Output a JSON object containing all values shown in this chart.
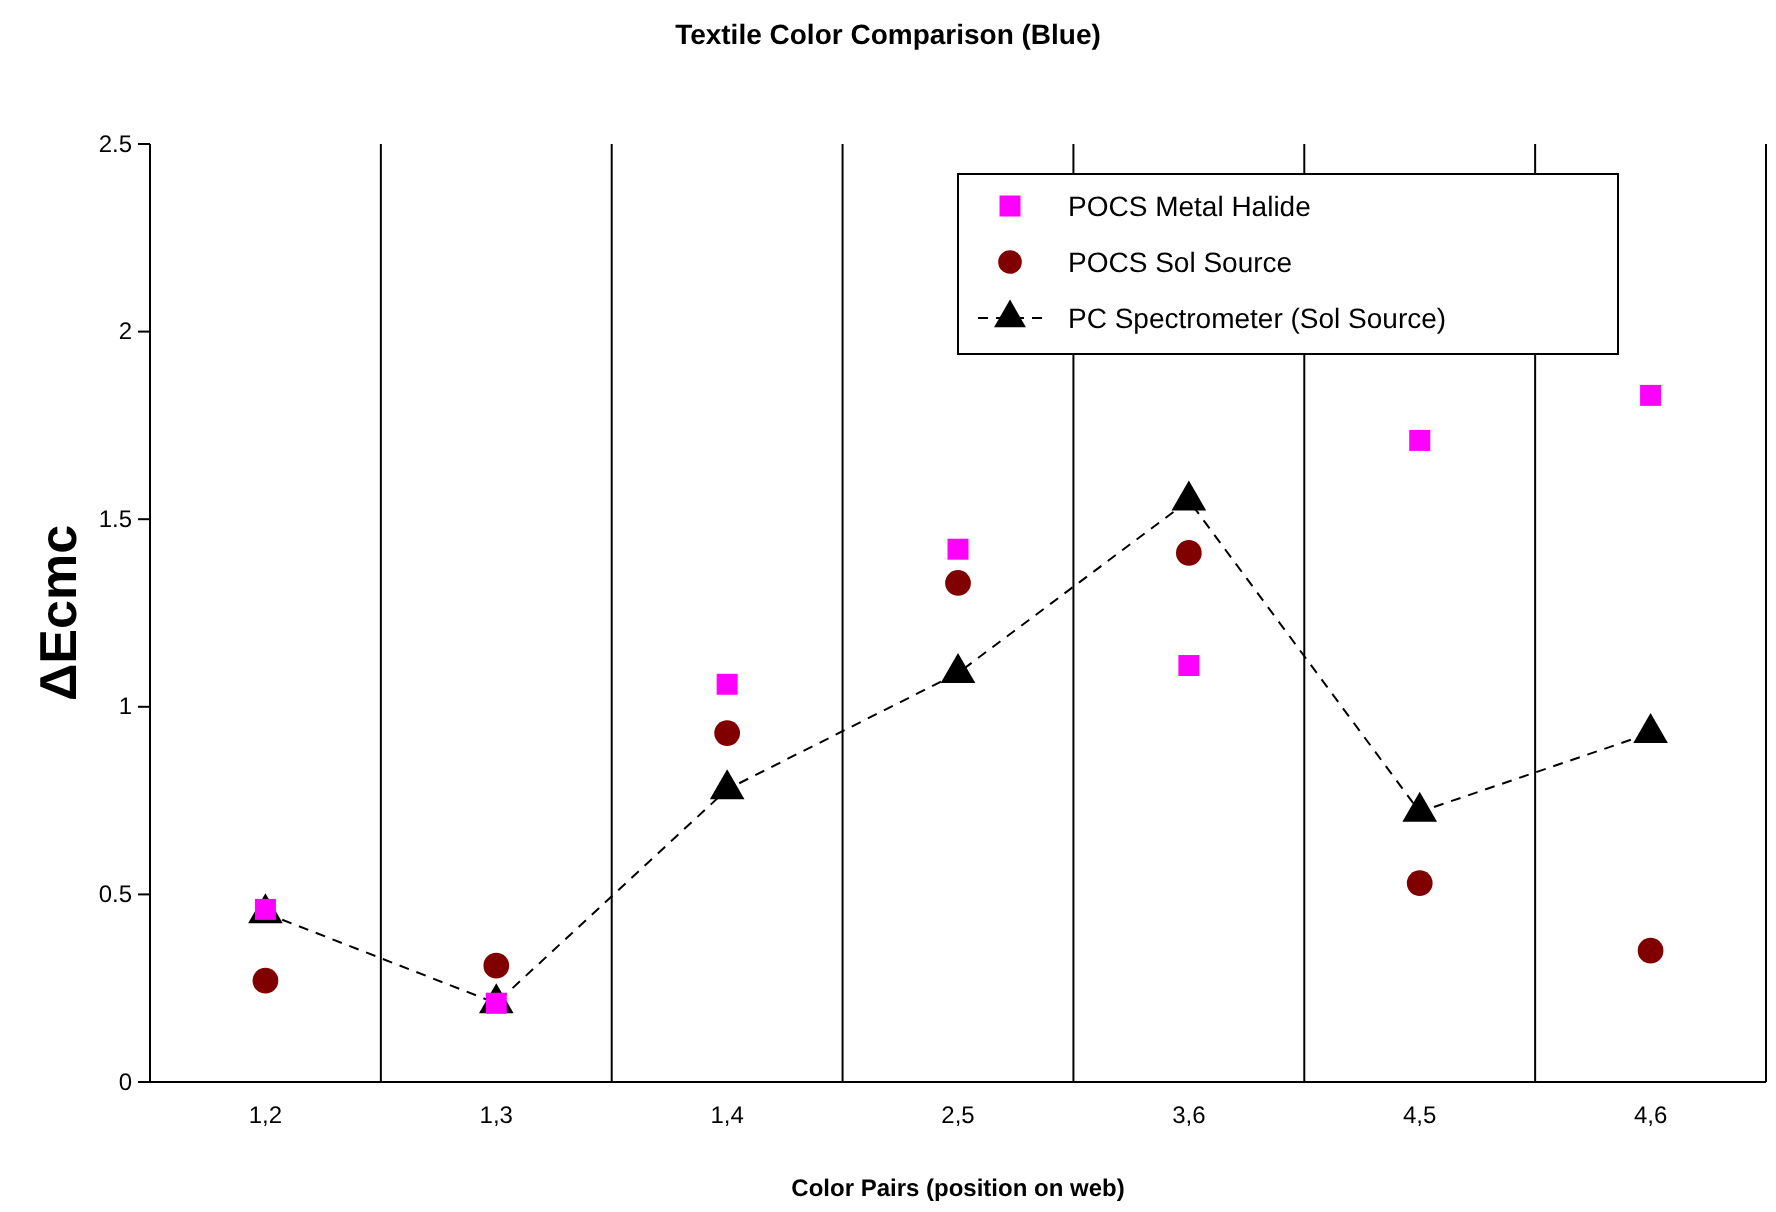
{
  "chart_data": {
    "type": "scatter",
    "title": "Textile Color Comparison (Blue)",
    "xlabel": "Color Pairs (position on web)",
    "ylabel": "ΔEcmc",
    "categories": [
      "1,2",
      "1,3",
      "1,4",
      "2,5",
      "3,6",
      "4,5",
      "4,6"
    ],
    "series": [
      {
        "name": "POCS Metal Halide",
        "color": "#ff00ff",
        "marker": "square",
        "values": [
          0.46,
          0.21,
          1.06,
          1.42,
          1.11,
          1.71,
          1.83
        ]
      },
      {
        "name": "POCS Sol Source",
        "color": "#800000",
        "marker": "circle",
        "values": [
          0.27,
          0.31,
          0.93,
          1.33,
          1.41,
          0.53,
          0.35
        ]
      },
      {
        "name": "PC Spectrometer (Sol Source)",
        "type": "line",
        "color": "#000000",
        "marker": "triangle",
        "line_style": "dashed",
        "values": [
          0.45,
          0.21,
          0.78,
          1.09,
          1.55,
          0.72,
          0.93
        ]
      }
    ],
    "ylim": [
      0,
      2.5
    ],
    "yticks": [
      0,
      0.5,
      1,
      1.5,
      2,
      2.5
    ],
    "grid": "x",
    "legend": "top right"
  }
}
